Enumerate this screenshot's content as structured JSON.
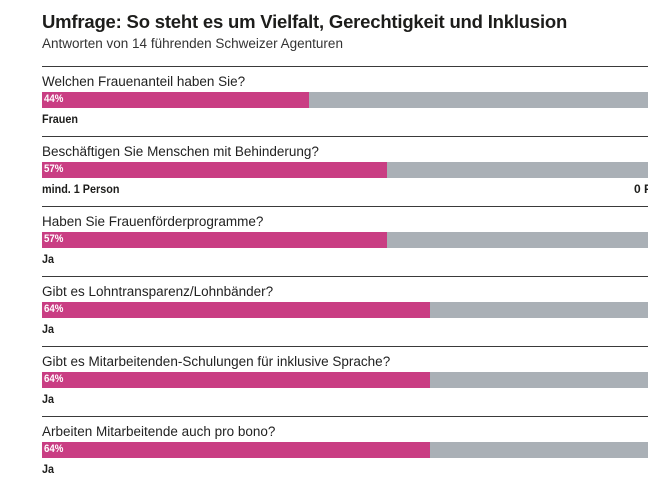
{
  "chart_data": {
    "type": "bar",
    "orientation": "horizontal-stacked-percent",
    "title": "Umfrage: So steht es um Vielfalt, Gerechtigkeit und Inklusion",
    "subtitle": "Antworten von 14 führenden Schweizer Agenturen",
    "xlim": [
      0,
      100
    ],
    "colors": {
      "highlight": "#c93e83",
      "remainder": "#aab0b6",
      "divider": "#3a3a3a"
    },
    "items": [
      {
        "question": "Welchen Frauenanteil haben Sie?",
        "value": 44,
        "value_label": "44%",
        "answer": "Frauen"
      },
      {
        "question": "Beschäftigen Sie Menschen mit Behinderung?",
        "value": 57,
        "value_label": "57%",
        "answer": "mind. 1 Person",
        "answer_right": "0 P"
      },
      {
        "question": "Haben Sie Frauenförderprogramme?",
        "value": 57,
        "value_label": "57%",
        "answer": "Ja"
      },
      {
        "question": "Gibt es Lohntransparenz/Lohnbänder?",
        "value": 64,
        "value_label": "64%",
        "answer": "Ja"
      },
      {
        "question": "Gibt es Mitarbeitenden-Schulungen für inklusive Sprache?",
        "value": 64,
        "value_label": "64%",
        "answer": "Ja"
      },
      {
        "question": "Arbeiten Mitarbeitende auch pro bono?",
        "value": 64,
        "value_label": "64%",
        "answer": "Ja"
      }
    ]
  }
}
